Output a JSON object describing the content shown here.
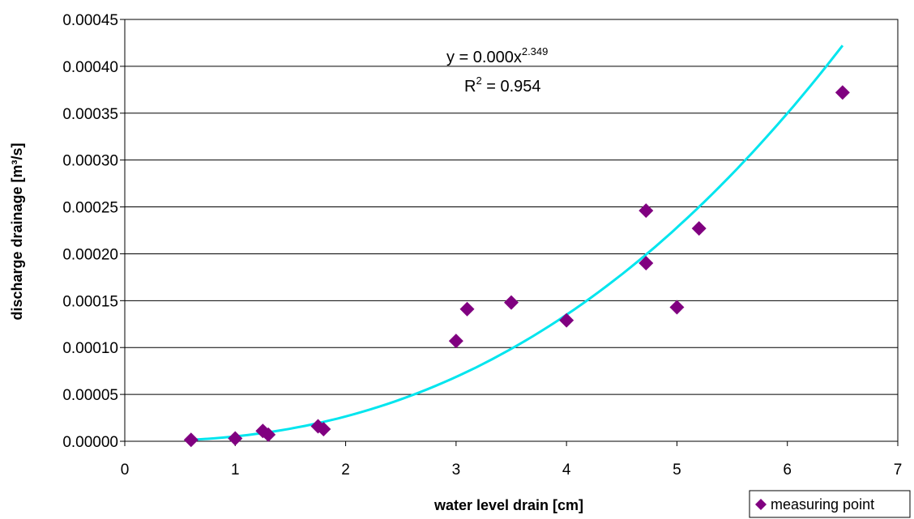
{
  "chart_data": {
    "type": "scatter",
    "xlabel": "water level drain [cm]",
    "ylabel": "discharge drainage [m³/s]",
    "xlim": [
      0,
      7
    ],
    "ylim": [
      0,
      0.00045
    ],
    "x_ticks": [
      {
        "value": 0,
        "label": "0"
      },
      {
        "value": 1,
        "label": "1"
      },
      {
        "value": 2,
        "label": "2"
      },
      {
        "value": 3,
        "label": "3"
      },
      {
        "value": 4,
        "label": "4"
      },
      {
        "value": 5,
        "label": "5"
      },
      {
        "value": 6,
        "label": "6"
      },
      {
        "value": 7,
        "label": "7"
      }
    ],
    "y_ticks": [
      {
        "value": 0,
        "label": "0.00000"
      },
      {
        "value": 5e-05,
        "label": "0.00005"
      },
      {
        "value": 0.0001,
        "label": "0.00010"
      },
      {
        "value": 0.00015,
        "label": "0.00015"
      },
      {
        "value": 0.0002,
        "label": "0.00020"
      },
      {
        "value": 0.00025,
        "label": "0.00025"
      },
      {
        "value": 0.0003,
        "label": "0.00030"
      },
      {
        "value": 0.00035,
        "label": "0.00035"
      },
      {
        "value": 0.0004,
        "label": "0.00040"
      },
      {
        "value": 0.00045,
        "label": "0.00045"
      }
    ],
    "grid": "horizontal",
    "legend": {
      "position": "bottom-right",
      "entries": [
        "measuring point"
      ]
    },
    "series": [
      {
        "name": "measuring point",
        "color": "#800080",
        "marker": "diamond",
        "points": [
          [
            0.6,
            1.5e-06
          ],
          [
            1.0,
            3e-06
          ],
          [
            1.25,
            1.1e-05
          ],
          [
            1.3,
            7e-06
          ],
          [
            1.75,
            1.6e-05
          ],
          [
            1.8,
            1.3e-05
          ],
          [
            3.0,
            0.000107
          ],
          [
            3.1,
            0.000141
          ],
          [
            3.5,
            0.000148
          ],
          [
            4.0,
            0.000129
          ],
          [
            4.72,
            0.000246
          ],
          [
            4.72,
            0.00019
          ],
          [
            5.0,
            0.000143
          ],
          [
            5.2,
            0.000227
          ],
          [
            6.5,
            0.000372
          ]
        ]
      }
    ],
    "trendline": {
      "type": "power",
      "color": "#00e5ee",
      "coefficient": 5.2e-06,
      "exponent": 2.349,
      "x_range": [
        0.6,
        6.5
      ],
      "equation_main": "y = 0.000x",
      "equation_exp": "2.349",
      "r2_prefix": "R",
      "r2_sup": "2",
      "r2_value": " = 0.954"
    }
  }
}
